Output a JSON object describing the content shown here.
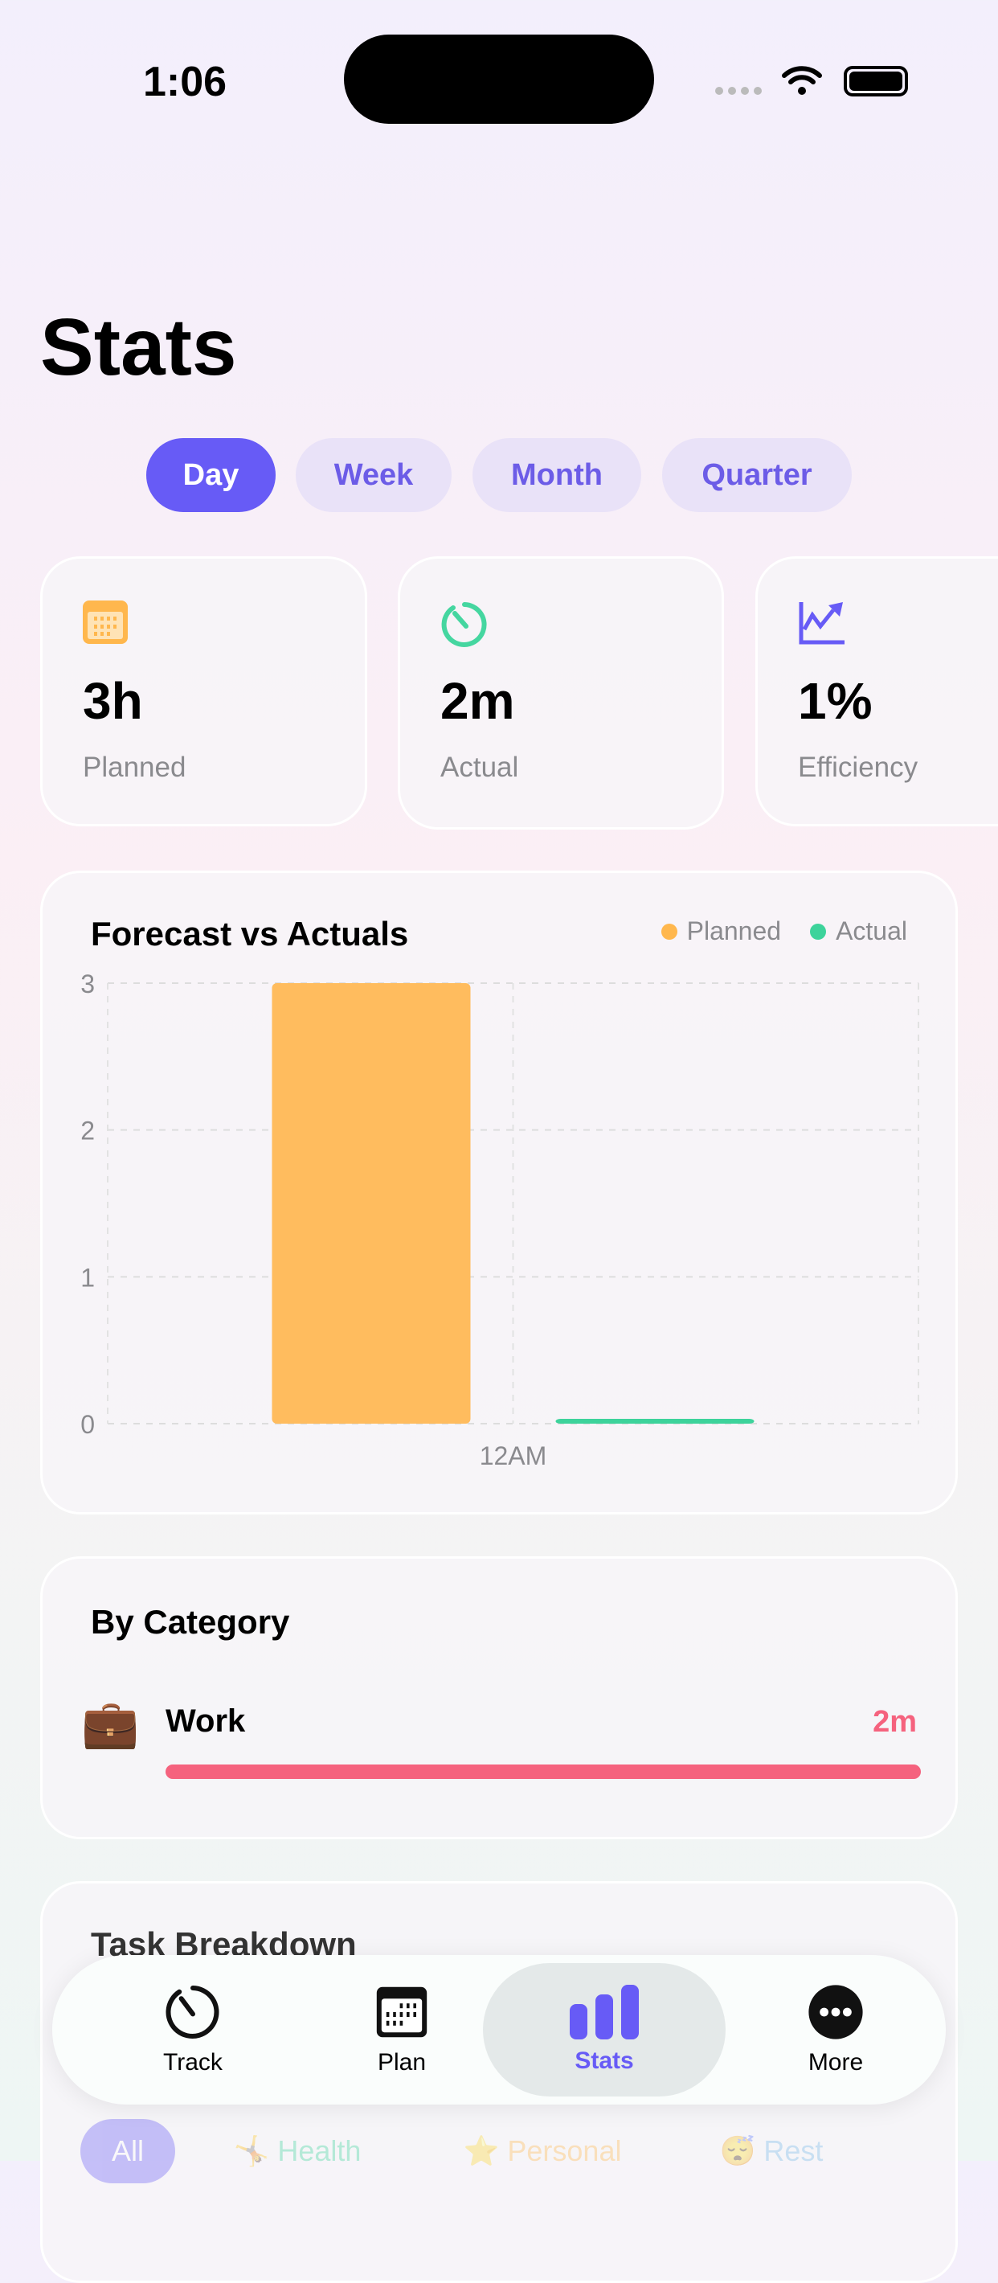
{
  "status_bar": {
    "time": "1:06"
  },
  "page": {
    "title": "Stats"
  },
  "periods": [
    {
      "label": "Day",
      "active": true
    },
    {
      "label": "Week"
    },
    {
      "label": "Month"
    },
    {
      "label": "Quarter"
    }
  ],
  "stats": [
    {
      "value": "3h",
      "label": "Planned",
      "icon": "calendar-icon",
      "color": "#ffb74d"
    },
    {
      "value": "2m",
      "label": "Actual",
      "icon": "timer-icon",
      "color": "#45d6a0"
    },
    {
      "value": "1%",
      "label": "Efficiency",
      "icon": "trend-chart-icon",
      "color": "#675bf6"
    }
  ],
  "chart_data": {
    "type": "bar",
    "title": "Forecast vs Actuals",
    "categories": [
      "12AM"
    ],
    "series": [
      {
        "name": "Planned",
        "values": [
          3
        ],
        "color": "#ffbc5e"
      },
      {
        "name": "Actual",
        "values": [
          0.033
        ],
        "color": "#3dd39b"
      }
    ],
    "yticks": [
      "0",
      "1",
      "2",
      "3"
    ],
    "ylim": [
      0,
      3
    ],
    "grid": true,
    "legend": "top-right"
  },
  "category": {
    "title": "By Category",
    "items": [
      {
        "icon": "briefcase-icon",
        "emoji": "💼",
        "name": "Work",
        "value": "2m",
        "progress": 1.0,
        "color": "#f5627e"
      }
    ]
  },
  "task_breakdown": {
    "title": "Task Breakdown",
    "filters": [
      {
        "label": "All"
      },
      {
        "label": "Health",
        "emoji": "🤸"
      },
      {
        "label": "Personal",
        "emoji": "⭐"
      },
      {
        "label": "Rest",
        "emoji": "😴"
      }
    ]
  },
  "tabbar": {
    "items": [
      {
        "label": "Track"
      },
      {
        "label": "Plan"
      },
      {
        "label": "Stats",
        "active": true
      },
      {
        "label": "More"
      }
    ]
  }
}
